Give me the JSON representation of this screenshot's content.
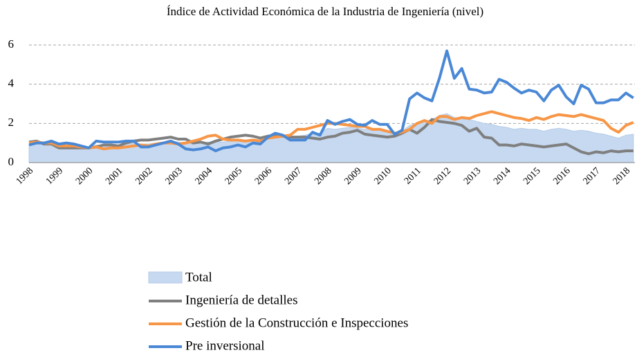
{
  "chart_data": {
    "type": "line",
    "title": "Índice de Actividad Económica  de la Industria de Ingeniería  (nivel)",
    "categories": [
      "1998",
      null,
      null,
      null,
      "1999",
      null,
      null,
      null,
      "2000",
      null,
      null,
      null,
      "2001",
      null,
      null,
      null,
      "2002",
      null,
      null,
      null,
      "2003",
      null,
      null,
      null,
      "2004",
      null,
      null,
      null,
      "2005",
      null,
      null,
      null,
      "2006",
      null,
      null,
      null,
      "2007",
      null,
      null,
      null,
      "2008",
      null,
      null,
      null,
      "2009",
      null,
      null,
      null,
      "2010",
      null,
      null,
      null,
      "2011",
      null,
      null,
      null,
      "2012",
      null,
      null,
      null,
      "2013",
      null,
      null,
      null,
      "2014",
      null,
      null,
      null,
      "2015",
      null,
      null,
      null,
      "2016",
      null,
      null,
      null,
      "2017",
      null,
      null,
      null,
      "2018",
      null
    ],
    "series": [
      {
        "name": "Total",
        "kind": "area",
        "color": "#c6d9f0",
        "values": [
          0.95,
          1.0,
          1.0,
          1.0,
          0.9,
          0.9,
          0.85,
          0.85,
          0.8,
          0.9,
          0.85,
          0.85,
          0.9,
          0.95,
          1.0,
          0.95,
          0.95,
          1.0,
          1.05,
          1.1,
          1.05,
          1.0,
          0.95,
          1.0,
          1.05,
          1.05,
          1.05,
          1.1,
          1.15,
          1.15,
          1.2,
          1.15,
          1.3,
          1.4,
          1.35,
          1.3,
          1.35,
          1.4,
          1.5,
          1.5,
          1.75,
          1.7,
          1.75,
          1.8,
          1.75,
          1.7,
          1.7,
          1.65,
          1.6,
          1.5,
          1.6,
          1.9,
          2.0,
          2.1,
          2.2,
          2.4,
          2.5,
          2.3,
          2.3,
          2.2,
          2.1,
          2.0,
          1.95,
          1.85,
          1.8,
          1.7,
          1.75,
          1.7,
          1.7,
          1.6,
          1.7,
          1.75,
          1.7,
          1.6,
          1.65,
          1.6,
          1.5,
          1.45,
          1.35,
          1.25,
          1.4,
          1.45
        ]
      },
      {
        "name": "Ingeniería de detalles",
        "color": "#7f7f7f",
        "values": [
          1.05,
          1.1,
          0.95,
          0.95,
          0.75,
          0.75,
          0.75,
          0.75,
          0.75,
          0.8,
          0.9,
          0.9,
          0.85,
          1.0,
          1.1,
          1.15,
          1.15,
          1.2,
          1.25,
          1.3,
          1.2,
          1.2,
          1.0,
          1.05,
          0.95,
          1.1,
          1.2,
          1.3,
          1.35,
          1.4,
          1.35,
          1.25,
          1.35,
          1.4,
          1.35,
          1.3,
          1.3,
          1.3,
          1.25,
          1.2,
          1.3,
          1.35,
          1.5,
          1.55,
          1.65,
          1.45,
          1.4,
          1.35,
          1.3,
          1.35,
          1.5,
          1.7,
          1.5,
          1.8,
          2.2,
          2.1,
          2.05,
          2.0,
          1.9,
          1.6,
          1.75,
          1.3,
          1.25,
          0.9,
          0.9,
          0.85,
          0.95,
          0.9,
          0.85,
          0.8,
          0.85,
          0.9,
          0.95,
          0.75,
          0.55,
          0.45,
          0.55,
          0.5,
          0.6,
          0.55,
          0.6,
          0.6
        ]
      },
      {
        "name": "Gestión de la Construcción e Inspecciones",
        "color": "#f79646",
        "values": [
          1.0,
          1.05,
          1.0,
          1.0,
          0.85,
          0.85,
          0.85,
          0.8,
          0.75,
          0.8,
          0.7,
          0.75,
          0.75,
          0.8,
          0.85,
          0.9,
          0.85,
          0.95,
          1.0,
          1.0,
          0.95,
          1.0,
          1.1,
          1.2,
          1.35,
          1.4,
          1.2,
          1.15,
          1.15,
          1.1,
          1.15,
          1.1,
          1.25,
          1.3,
          1.35,
          1.4,
          1.7,
          1.7,
          1.8,
          1.9,
          2.0,
          2.0,
          1.95,
          1.9,
          1.85,
          1.85,
          1.7,
          1.7,
          1.6,
          1.5,
          1.55,
          1.7,
          2.0,
          2.15,
          2.0,
          2.35,
          2.35,
          2.2,
          2.3,
          2.25,
          2.4,
          2.5,
          2.6,
          2.5,
          2.4,
          2.3,
          2.25,
          2.15,
          2.3,
          2.2,
          2.35,
          2.45,
          2.4,
          2.35,
          2.45,
          2.35,
          2.25,
          2.15,
          1.75,
          1.55,
          1.9,
          2.05
        ]
      },
      {
        "name": "Pre inversional",
        "color": "#4a88d6",
        "values": [
          0.9,
          1.0,
          1.0,
          1.1,
          0.95,
          1.0,
          0.95,
          0.85,
          0.75,
          1.1,
          1.05,
          1.05,
          1.05,
          1.1,
          1.1,
          0.8,
          0.8,
          0.9,
          1.0,
          1.1,
          0.95,
          0.7,
          0.65,
          0.7,
          0.8,
          0.6,
          0.75,
          0.8,
          0.9,
          0.8,
          1.0,
          0.95,
          1.3,
          1.5,
          1.4,
          1.15,
          1.15,
          1.15,
          1.55,
          1.4,
          2.15,
          1.95,
          2.1,
          2.2,
          1.95,
          1.9,
          2.15,
          1.95,
          1.95,
          1.45,
          1.65,
          3.25,
          3.55,
          3.3,
          3.15,
          4.3,
          5.7,
          4.3,
          4.8,
          3.75,
          3.7,
          3.55,
          3.6,
          4.25,
          4.1,
          3.8,
          3.55,
          3.7,
          3.6,
          3.15,
          3.7,
          3.95,
          3.35,
          3.0,
          3.95,
          3.75,
          3.05,
          3.05,
          3.2,
          3.2,
          3.55,
          3.3
        ]
      }
    ],
    "ylim": [
      0,
      6
    ],
    "yticks": [
      0,
      2,
      4,
      6
    ],
    "grid": true
  }
}
